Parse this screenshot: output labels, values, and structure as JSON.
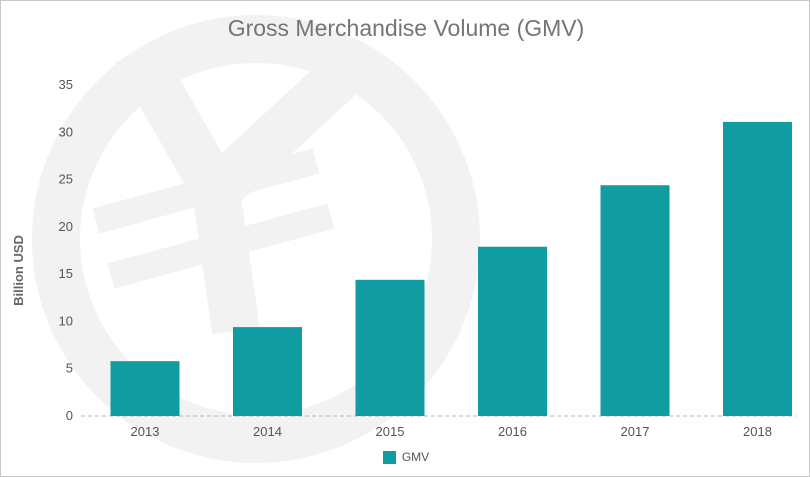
{
  "chart_data": {
    "type": "bar",
    "title": "Gross Merchandise Volume (GMV)",
    "xlabel": "",
    "ylabel": "Billion USD",
    "categories": [
      "2013",
      "2014",
      "2015",
      "2016",
      "2017",
      "2018"
    ],
    "series": [
      {
        "name": "GMV",
        "values": [
          5.8,
          9.4,
          14.4,
          17.9,
          24.4,
          31.1
        ]
      }
    ],
    "ylim": [
      0,
      35
    ],
    "yticks": [
      0,
      5,
      10,
      15,
      20,
      25,
      30,
      35
    ],
    "grid": false,
    "legend_position": "bottom"
  },
  "colors": {
    "bar": "#109ca0",
    "watermark": "#f2f2f2",
    "baseline": "#b5b5b5"
  },
  "watermark_icon": "yen-icon"
}
